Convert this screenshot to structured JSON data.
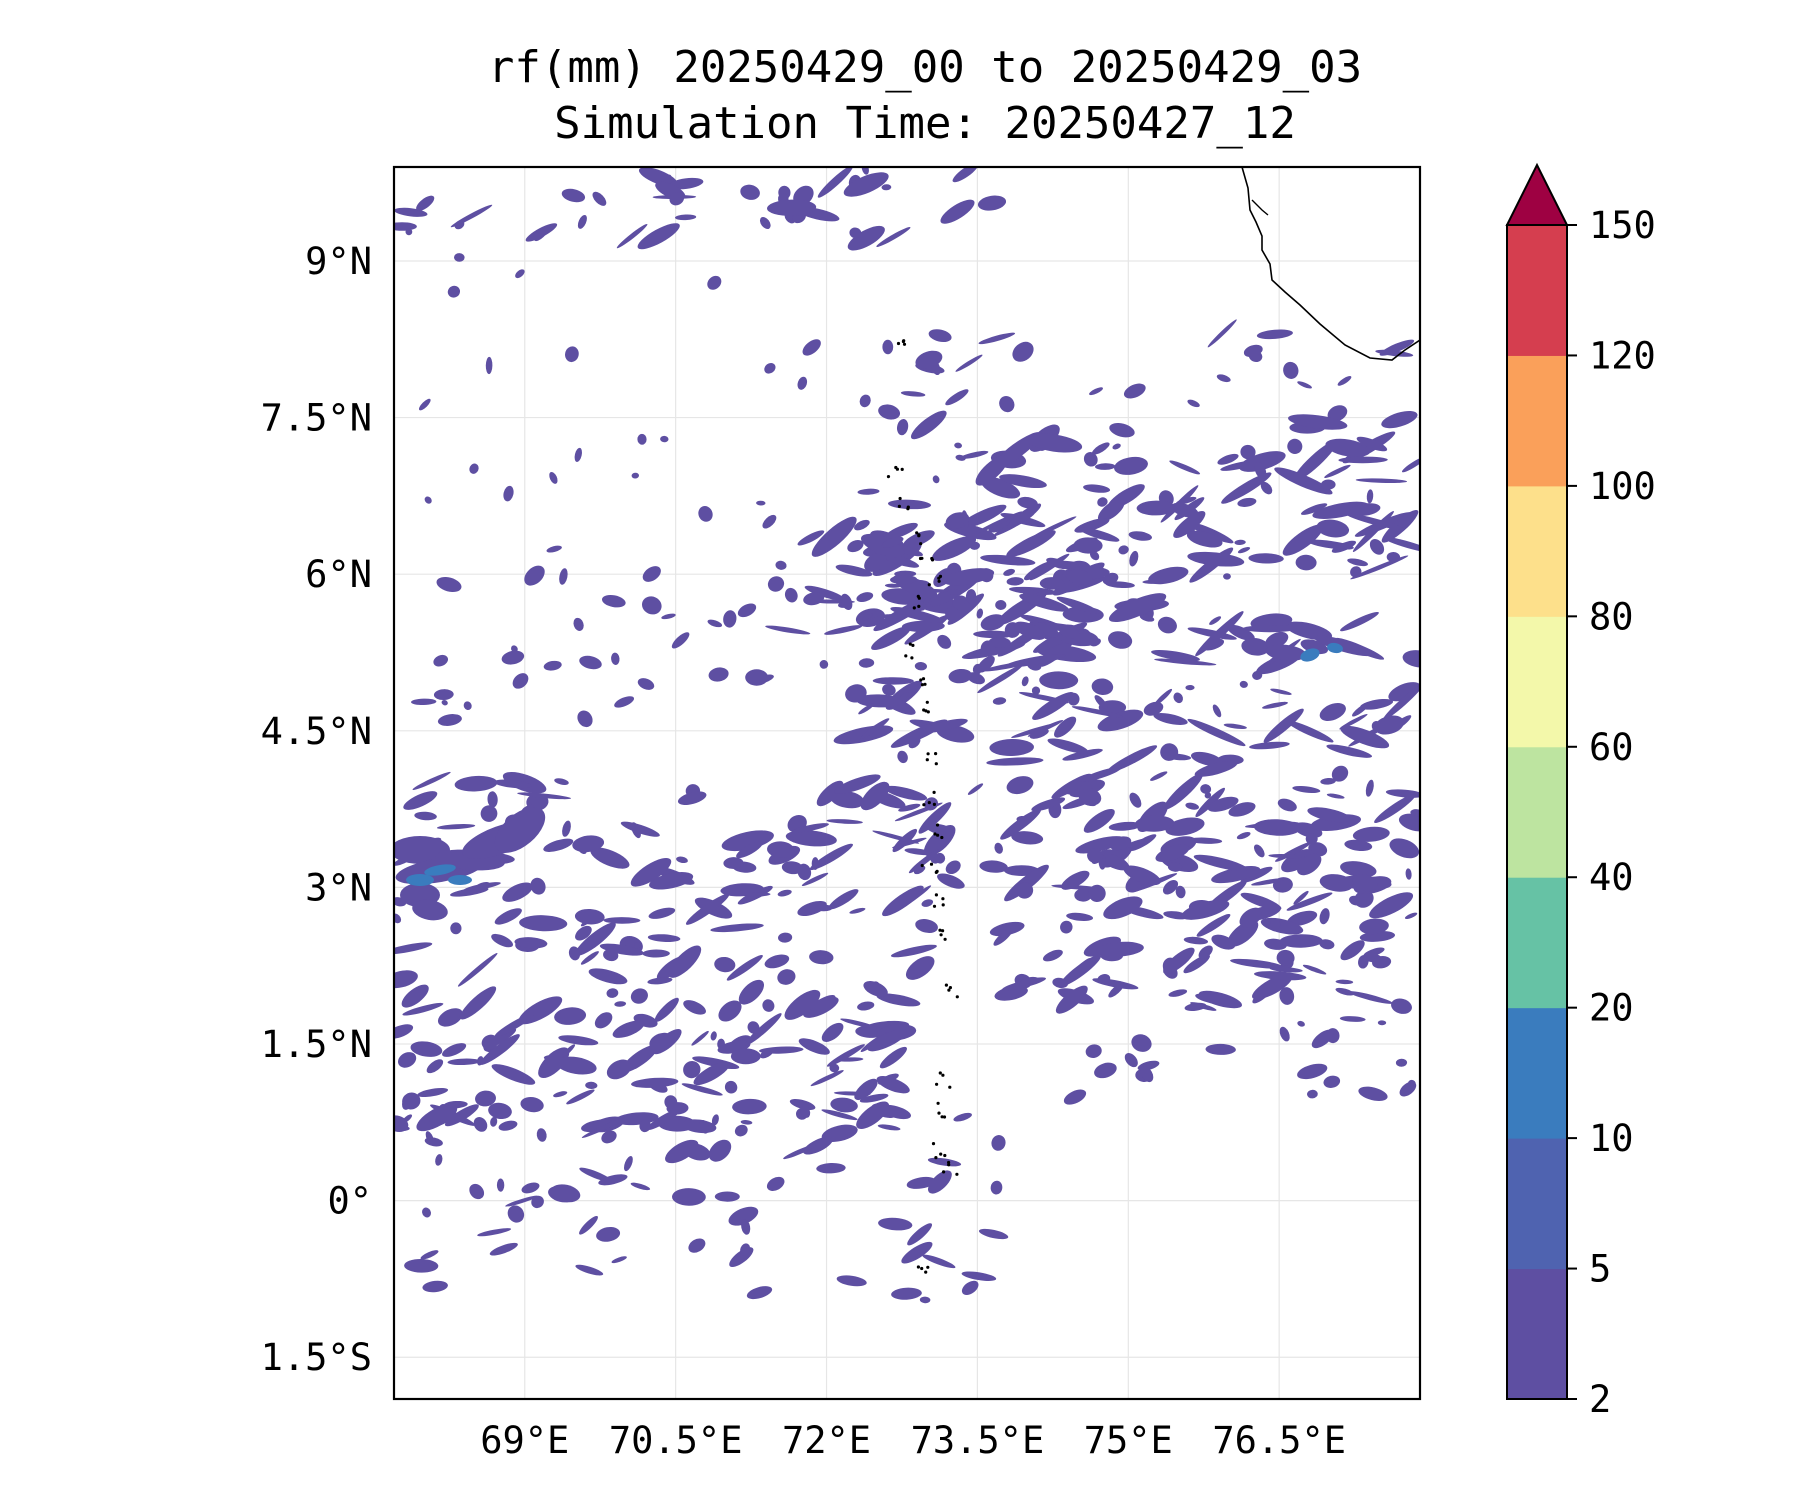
{
  "title": {
    "line1": "rf(mm) 20250429_00 to 20250429_03",
    "line2": "Simulation Time: 20250427_12"
  },
  "map": {
    "lon_range": [
      67.7,
      77.9
    ],
    "lat_range": [
      -1.9,
      9.9
    ],
    "lon_ticks": [
      {
        "value": 69.0,
        "label": "69°E"
      },
      {
        "value": 70.5,
        "label": "70.5°E"
      },
      {
        "value": 72.0,
        "label": "72°E"
      },
      {
        "value": 73.5,
        "label": "73.5°E"
      },
      {
        "value": 75.0,
        "label": "75°E"
      },
      {
        "value": 76.5,
        "label": "76.5°E"
      }
    ],
    "lat_ticks": [
      {
        "value": 9.0,
        "label": "9°N"
      },
      {
        "value": 7.5,
        "label": "7.5°N"
      },
      {
        "value": 6.0,
        "label": "6°N"
      },
      {
        "value": 4.5,
        "label": "4.5°N"
      },
      {
        "value": 3.0,
        "label": "3°N"
      },
      {
        "value": 1.5,
        "label": "1.5°N"
      },
      {
        "value": 0.0,
        "label": "0°"
      },
      {
        "value": -1.5,
        "label": "1.5°S"
      }
    ],
    "grid": true,
    "rain_color_low": "#5e4fa2",
    "rain_color_mid": "#3a7cbe"
  },
  "colorbar": {
    "levels": [
      2,
      5,
      10,
      20,
      40,
      60,
      80,
      100,
      120,
      150
    ],
    "labels": [
      "2",
      "5",
      "10",
      "20",
      "40",
      "60",
      "80",
      "100",
      "120",
      "150"
    ],
    "colors": [
      "#5e4fa2",
      "#4f63b0",
      "#3a7cbe",
      "#66c2a5",
      "#bde4a0",
      "#f3f8aa",
      "#fde08b",
      "#faa05a",
      "#d53e4f"
    ],
    "extend_color": "#9e0142",
    "extend": "max"
  }
}
